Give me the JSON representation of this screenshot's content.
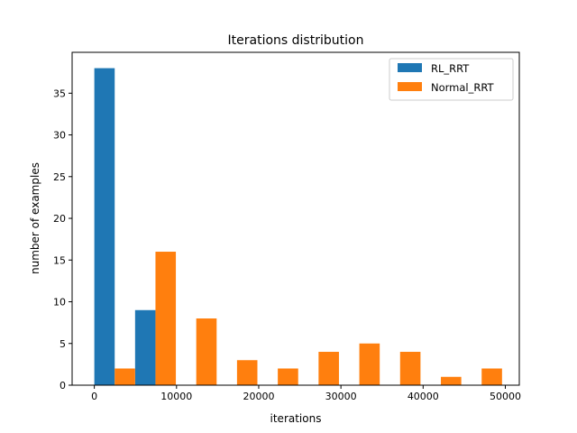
{
  "chart_data": {
    "type": "bar",
    "title": "Iterations distribution",
    "xlabel": "iterations",
    "ylabel": "number of examples",
    "xlim": [
      -2700,
      51700
    ],
    "ylim": [
      0,
      39.9
    ],
    "xticks": [
      0,
      10000,
      20000,
      30000,
      40000,
      50000
    ],
    "xtick_labels": [
      "0",
      "10000",
      "20000",
      "30000",
      "40000",
      "50000"
    ],
    "yticks": [
      0,
      5,
      10,
      15,
      20,
      25,
      30,
      35
    ],
    "ytick_labels": [
      "0",
      "5",
      "10",
      "15",
      "20",
      "25",
      "30",
      "35"
    ],
    "grid": false,
    "legend_position": "top-right",
    "bin_edges": [
      0,
      4960,
      9920,
      14880,
      19840,
      24800,
      29760,
      34720,
      39680,
      44640,
      49600
    ],
    "series": [
      {
        "name": "RL_RRT",
        "color": "#1f77b4",
        "values": [
          38,
          9,
          0,
          0,
          0,
          0,
          0,
          0,
          0,
          0
        ]
      },
      {
        "name": "Normal_RRT",
        "color": "#ff7f0e",
        "values": [
          2,
          16,
          8,
          3,
          2,
          4,
          5,
          4,
          1,
          2
        ]
      }
    ]
  }
}
